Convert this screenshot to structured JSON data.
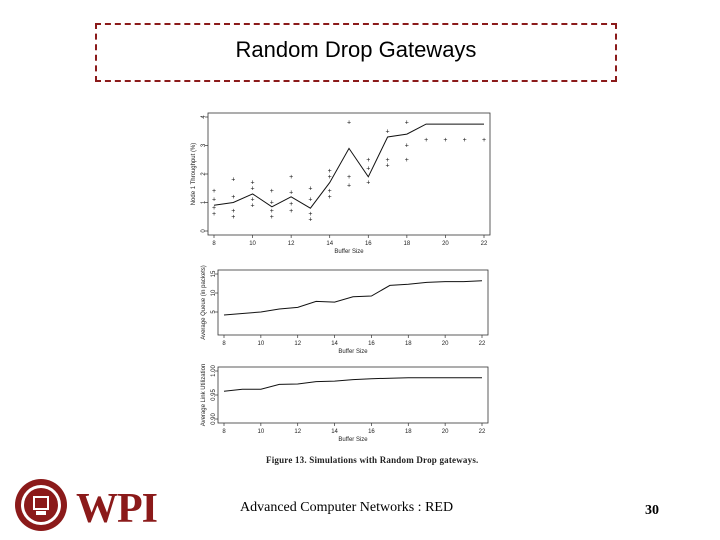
{
  "slide": {
    "title": "Random Drop Gateways",
    "caption": "Figure 13.  Simulations with Random Drop gateways.",
    "footer": "Advanced Computer Networks : RED",
    "page_number": "30",
    "logo_text": "WPI",
    "accent_color": "#8b1a1a"
  },
  "chart_data": [
    {
      "type": "scatter",
      "xlabel": "Buffer Size",
      "ylabel": "Node 1 Throughput (%)",
      "xlim": [
        8,
        22
      ],
      "ylim": [
        0,
        4
      ],
      "x_ticks": [
        "8",
        "10",
        "12",
        "14",
        "16",
        "18",
        "20",
        "22"
      ],
      "y_ticks": [
        "0",
        "1",
        "2",
        "3",
        "4"
      ],
      "grid": false,
      "series": [
        {
          "mark": "line",
          "points": [
            [
              8,
              0.9
            ],
            [
              9,
              1.0
            ],
            [
              10,
              1.3
            ],
            [
              11,
              0.85
            ],
            [
              12,
              1.2
            ],
            [
              13,
              0.8
            ],
            [
              14,
              1.7
            ],
            [
              15,
              2.9
            ],
            [
              16,
              1.9
            ],
            [
              17,
              3.3
            ],
            [
              18,
              3.4
            ],
            [
              19,
              3.75
            ],
            [
              20,
              3.75
            ],
            [
              21,
              3.75
            ],
            [
              22,
              3.75
            ]
          ]
        },
        {
          "mark": "points",
          "points": [
            [
              8,
              0.6
            ],
            [
              8,
              0.8
            ],
            [
              8,
              1.1
            ],
            [
              8,
              1.4
            ],
            [
              9,
              0.5
            ],
            [
              9,
              0.7
            ],
            [
              9,
              1.2
            ],
            [
              9,
              1.8
            ],
            [
              10,
              0.9
            ],
            [
              10,
              1.1
            ],
            [
              10,
              1.5
            ],
            [
              10,
              1.7
            ],
            [
              11,
              0.5
            ],
            [
              11,
              0.7
            ],
            [
              11,
              1.0
            ],
            [
              11,
              1.4
            ],
            [
              12,
              0.7
            ],
            [
              12,
              0.95
            ],
            [
              12,
              1.35
            ],
            [
              12,
              1.9
            ],
            [
              13,
              0.4
            ],
            [
              13,
              0.6
            ],
            [
              13,
              1.1
            ],
            [
              13,
              1.5
            ],
            [
              14,
              1.2
            ],
            [
              14,
              1.4
            ],
            [
              14,
              1.9
            ],
            [
              14,
              2.1
            ],
            [
              15,
              1.6
            ],
            [
              15,
              1.9
            ],
            [
              15,
              3.8
            ],
            [
              16,
              1.7
            ],
            [
              16,
              2.2
            ],
            [
              16,
              2.5
            ],
            [
              17,
              2.3
            ],
            [
              17,
              2.5
            ],
            [
              17,
              3.5
            ],
            [
              18,
              2.5
            ],
            [
              18,
              3.0
            ],
            [
              18,
              3.8
            ],
            [
              19,
              3.2
            ],
            [
              20,
              3.2
            ],
            [
              21,
              3.2
            ],
            [
              22,
              3.2
            ]
          ]
        }
      ]
    },
    {
      "type": "line",
      "xlabel": "Buffer Size",
      "ylabel": "Average Queue (in packets)",
      "xlim": [
        8,
        22
      ],
      "ylim": [
        0,
        15
      ],
      "x_ticks": [
        "8",
        "10",
        "12",
        "14",
        "16",
        "18",
        "20",
        "22"
      ],
      "y_ticks": [
        "5",
        "10",
        "15"
      ],
      "grid": false,
      "series": [
        {
          "values_x": [
            8,
            9,
            10,
            11,
            12,
            13,
            14,
            15,
            16,
            17,
            18,
            19,
            20,
            21,
            22
          ],
          "values_y": [
            4.2,
            4.6,
            5.0,
            5.8,
            6.2,
            7.8,
            7.6,
            9.0,
            9.2,
            12.0,
            12.3,
            12.8,
            13.0,
            13.0,
            13.2
          ]
        }
      ]
    },
    {
      "type": "line",
      "xlabel": "Buffer Size",
      "ylabel": "Average Link Utilization",
      "xlim": [
        8,
        22
      ],
      "ylim": [
        0.9,
        1.0
      ],
      "x_ticks": [
        "8",
        "10",
        "12",
        "14",
        "16",
        "18",
        "20",
        "22"
      ],
      "y_ticks": [
        "0.90",
        "0.95",
        "1.00"
      ],
      "grid": false,
      "series": [
        {
          "values_x": [
            8,
            9,
            10,
            11,
            12,
            13,
            14,
            15,
            16,
            17,
            18,
            19,
            20,
            21,
            22
          ],
          "values_y": [
            0.958,
            0.962,
            0.962,
            0.972,
            0.973,
            0.978,
            0.979,
            0.982,
            0.984,
            0.985,
            0.986,
            0.986,
            0.986,
            0.986,
            0.986
          ]
        }
      ]
    }
  ]
}
